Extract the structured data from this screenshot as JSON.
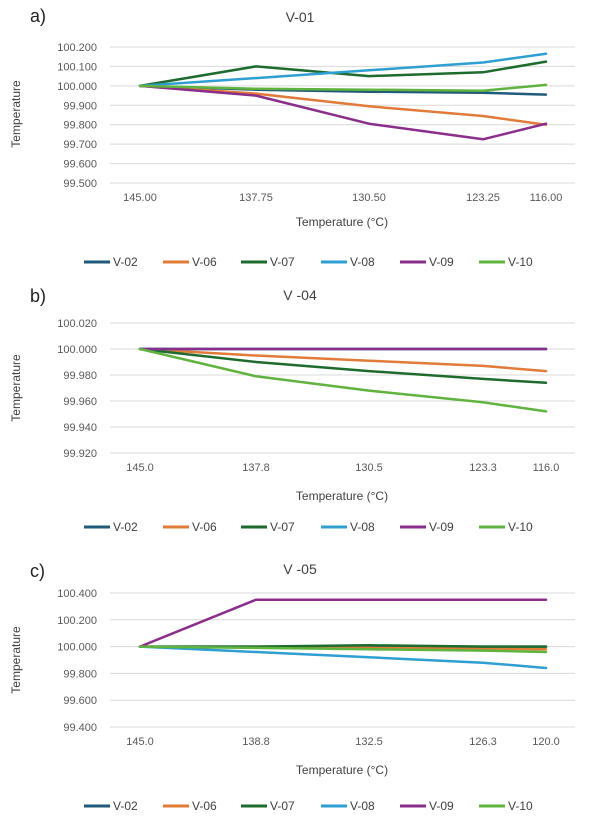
{
  "chart_data": [
    {
      "type": "line",
      "panel_label": "a)",
      "title": "V-01",
      "xlabel": "Temperature (°C)",
      "ylabel": "Temperature",
      "categories": [
        "145.00",
        "137.75",
        "130.50",
        "123.25",
        "116.00"
      ],
      "yticks": [
        "99.500",
        "99.600",
        "99.700",
        "99.800",
        "99.900",
        "100.000",
        "100.100",
        "100.200"
      ],
      "ylim": [
        99.5,
        100.2
      ],
      "grid": true,
      "legend_position": "bottom",
      "series": [
        {
          "name": "V-02",
          "color": "#1f5a7a",
          "values": [
            100.0,
            99.98,
            99.97,
            99.965,
            99.955
          ]
        },
        {
          "name": "V-06",
          "color": "#e07b39",
          "values": [
            100.0,
            99.96,
            99.895,
            99.845,
            99.8
          ]
        },
        {
          "name": "V-07",
          "color": "#1e6b2e",
          "values": [
            100.0,
            100.1,
            100.05,
            100.07,
            100.125
          ]
        },
        {
          "name": "V-08",
          "color": "#2e9fd0",
          "values": [
            100.0,
            100.04,
            100.08,
            100.12,
            100.165
          ]
        },
        {
          "name": "V-09",
          "color": "#8b2d8b",
          "values": [
            100.0,
            99.95,
            99.805,
            99.725,
            99.805
          ]
        },
        {
          "name": "V-10",
          "color": "#5fb33e",
          "values": [
            100.0,
            99.985,
            99.98,
            99.975,
            100.005
          ]
        }
      ]
    },
    {
      "type": "line",
      "panel_label": "b)",
      "title": "V -04",
      "xlabel": "Temperature (°C)",
      "ylabel": "Temperature",
      "categories": [
        "145.0",
        "137.8",
        "130.5",
        "123.3",
        "116.0"
      ],
      "yticks": [
        "99.920",
        "99.940",
        "99.960",
        "99.980",
        "100.000",
        "100.020"
      ],
      "ylim": [
        99.92,
        100.02
      ],
      "grid": true,
      "legend_position": "bottom",
      "series": [
        {
          "name": "V-02",
          "color": "#1f5a7a",
          "values": [
            100.0,
            100.0,
            100.0,
            100.0,
            100.0
          ]
        },
        {
          "name": "V-06",
          "color": "#e07b39",
          "values": [
            100.0,
            99.995,
            99.991,
            99.987,
            99.983
          ]
        },
        {
          "name": "V-07",
          "color": "#1e6b2e",
          "values": [
            100.0,
            99.99,
            99.983,
            99.977,
            99.974
          ]
        },
        {
          "name": "V-08",
          "color": "#2e9fd0",
          "values": [
            100.0,
            100.0,
            100.0,
            100.0,
            100.0
          ]
        },
        {
          "name": "V-09",
          "color": "#8b2d8b",
          "values": [
            100.0,
            100.0,
            100.0,
            100.0,
            100.0
          ]
        },
        {
          "name": "V-10",
          "color": "#5fb33e",
          "values": [
            100.0,
            99.979,
            99.968,
            99.959,
            99.952
          ]
        }
      ]
    },
    {
      "type": "line",
      "panel_label": "c)",
      "title": "V -05",
      "xlabel": "Temperature (°C)",
      "ylabel": "Temperature",
      "categories": [
        "145.0",
        "138.8",
        "132.5",
        "126.3",
        "120.0"
      ],
      "yticks": [
        "99.400",
        "99.600",
        "99.800",
        "100.000",
        "100.200",
        "100.400"
      ],
      "ylim": [
        99.4,
        100.4
      ],
      "grid": true,
      "legend_position": "bottom",
      "series": [
        {
          "name": "V-02",
          "color": "#1f5a7a",
          "values": [
            100.0,
            100.0,
            100.0,
            100.0,
            100.0
          ]
        },
        {
          "name": "V-06",
          "color": "#e07b39",
          "values": [
            100.0,
            99.995,
            99.99,
            99.985,
            99.98
          ]
        },
        {
          "name": "V-07",
          "color": "#1e6b2e",
          "values": [
            100.0,
            100.0,
            100.01,
            100.0,
            100.0
          ]
        },
        {
          "name": "V-08",
          "color": "#2e9fd0",
          "values": [
            100.0,
            99.96,
            99.92,
            99.88,
            99.84
          ]
        },
        {
          "name": "V-09",
          "color": "#8b2d8b",
          "values": [
            100.0,
            100.35,
            100.35,
            100.35,
            100.35
          ]
        },
        {
          "name": "V-10",
          "color": "#5fb33e",
          "values": [
            100.0,
            99.99,
            99.98,
            99.97,
            99.96
          ]
        }
      ]
    }
  ]
}
